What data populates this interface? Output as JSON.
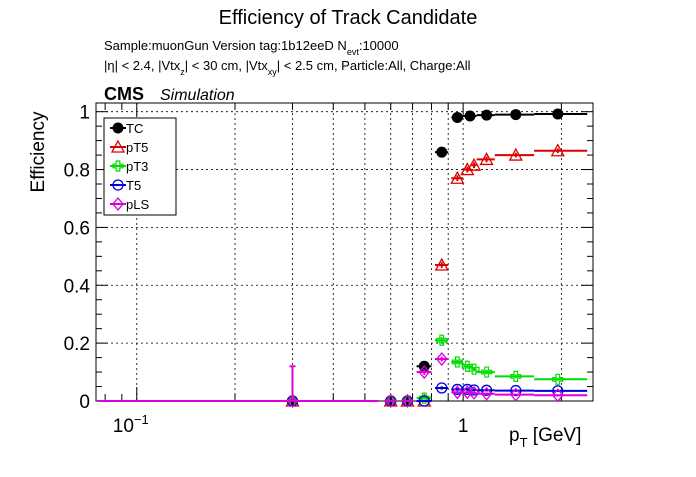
{
  "title": "Efficiency of Track Candidate",
  "info": {
    "sample": "Sample:muonGun   Version tag:1b12eeD  N",
    "sample_sub": "evt",
    "sample_tail": ":10000",
    "cuts_a": "|η| < 2.4, |Vtx",
    "cuts_a_sub": "z",
    "cuts_b": "| < 30 cm, |Vtx",
    "cuts_b_sub": "xy",
    "cuts_c": "| < 2.5 cm, Particle:All, Charge:All"
  },
  "cms_label": "CMS",
  "sim_label": "Simulation",
  "colors": {
    "TC": "#000000",
    "pT5": "#dd0000",
    "pT3": "#00dd00",
    "T5": "#0000dd",
    "pLS": "#dd00dd"
  },
  "chart_data": {
    "type": "scatter",
    "title": "Efficiency of Track Candidate",
    "xlabel": "p",
    "xlabel_sub": "T",
    "xlabel_unit": " [GeV]",
    "ylabel": "Efficiency",
    "xscale": "log",
    "xlim": [
      0.075,
      2.5
    ],
    "ylim": [
      0,
      1.03
    ],
    "grid": true,
    "legend_position": "top-left",
    "x_tick_labels": [
      {
        "value": 0.1,
        "base": "10",
        "exp": "−1"
      },
      {
        "value": 1,
        "base": "1",
        "exp": ""
      }
    ],
    "y_tick_labels": [
      "0",
      "0.2",
      "0.4",
      "0.6",
      "0.8",
      "1"
    ],
    "y_tick_values": [
      0,
      0.2,
      0.4,
      0.6,
      0.8,
      1.0
    ],
    "series": [
      {
        "name": "TC",
        "marker": "circle-filled",
        "points": [
          {
            "x": 0.3,
            "xlo": 0.295,
            "xhi": 0.305,
            "y": 0.0,
            "err": 0.0
          },
          {
            "x": 0.6,
            "xlo": 0.575,
            "xhi": 0.625,
            "y": 0.0,
            "err": 0.0
          },
          {
            "x": 0.675,
            "xlo": 0.65,
            "xhi": 0.7,
            "y": 0.0,
            "err": 0.0
          },
          {
            "x": 0.76,
            "xlo": 0.72,
            "xhi": 0.8,
            "y": 0.12,
            "err": 0.01
          },
          {
            "x": 0.86,
            "xlo": 0.82,
            "xhi": 0.9,
            "y": 0.86,
            "err": 0.01
          },
          {
            "x": 0.96,
            "xlo": 0.92,
            "xhi": 1.0,
            "y": 0.98,
            "err": 0.005
          },
          {
            "x": 1.05,
            "xlo": 1.0,
            "xhi": 1.1,
            "y": 0.985,
            "err": 0.005
          },
          {
            "x": 1.18,
            "xlo": 1.1,
            "xhi": 1.25,
            "y": 0.988,
            "err": 0.005
          },
          {
            "x": 1.45,
            "xlo": 1.25,
            "xhi": 1.65,
            "y": 0.99,
            "err": 0.005
          },
          {
            "x": 1.95,
            "xlo": 1.65,
            "xhi": 2.4,
            "y": 0.992,
            "err": 0.005
          }
        ]
      },
      {
        "name": "pT5",
        "marker": "triangle-open",
        "points": [
          {
            "x": 0.3,
            "xlo": 0.295,
            "xhi": 0.305,
            "y": 0.0,
            "err": 0.0
          },
          {
            "x": 0.6,
            "xlo": 0.575,
            "xhi": 0.625,
            "y": 0.0,
            "err": 0.0
          },
          {
            "x": 0.675,
            "xlo": 0.65,
            "xhi": 0.7,
            "y": 0.0,
            "err": 0.0
          },
          {
            "x": 0.76,
            "xlo": 0.72,
            "xhi": 0.8,
            "y": 0.0,
            "err": 0.0
          },
          {
            "x": 0.86,
            "xlo": 0.82,
            "xhi": 0.9,
            "y": 0.47,
            "err": 0.01
          },
          {
            "x": 0.96,
            "xlo": 0.92,
            "xhi": 1.0,
            "y": 0.77,
            "err": 0.01
          },
          {
            "x": 1.03,
            "xlo": 1.0,
            "xhi": 1.06,
            "y": 0.8,
            "err": 0.01
          },
          {
            "x": 1.08,
            "xlo": 1.06,
            "xhi": 1.1,
            "y": 0.815,
            "err": 0.01
          },
          {
            "x": 1.18,
            "xlo": 1.1,
            "xhi": 1.25,
            "y": 0.835,
            "err": 0.01
          },
          {
            "x": 1.45,
            "xlo": 1.25,
            "xhi": 1.65,
            "y": 0.85,
            "err": 0.008
          },
          {
            "x": 1.95,
            "xlo": 1.65,
            "xhi": 2.4,
            "y": 0.865,
            "err": 0.008
          }
        ]
      },
      {
        "name": "pT3",
        "marker": "cross-open",
        "points": [
          {
            "x": 0.3,
            "xlo": 0.295,
            "xhi": 0.305,
            "y": 0.0,
            "err": 0.0
          },
          {
            "x": 0.6,
            "xlo": 0.575,
            "xhi": 0.625,
            "y": 0.0,
            "err": 0.0
          },
          {
            "x": 0.675,
            "xlo": 0.65,
            "xhi": 0.7,
            "y": 0.0,
            "err": 0.0
          },
          {
            "x": 0.76,
            "xlo": 0.72,
            "xhi": 0.8,
            "y": 0.01,
            "err": 0.005
          },
          {
            "x": 0.86,
            "xlo": 0.82,
            "xhi": 0.9,
            "y": 0.21,
            "err": 0.01
          },
          {
            "x": 0.96,
            "xlo": 0.92,
            "xhi": 1.0,
            "y": 0.135,
            "err": 0.008
          },
          {
            "x": 1.03,
            "xlo": 1.0,
            "xhi": 1.06,
            "y": 0.12,
            "err": 0.008
          },
          {
            "x": 1.08,
            "xlo": 1.06,
            "xhi": 1.1,
            "y": 0.11,
            "err": 0.008
          },
          {
            "x": 1.18,
            "xlo": 1.1,
            "xhi": 1.25,
            "y": 0.1,
            "err": 0.007
          },
          {
            "x": 1.45,
            "xlo": 1.25,
            "xhi": 1.65,
            "y": 0.085,
            "err": 0.006
          },
          {
            "x": 1.95,
            "xlo": 1.65,
            "xhi": 2.4,
            "y": 0.075,
            "err": 0.005
          }
        ]
      },
      {
        "name": "T5",
        "marker": "circle-open",
        "points": [
          {
            "x": 0.3,
            "xlo": 0.295,
            "xhi": 0.305,
            "y": 0.0,
            "err": 0.0
          },
          {
            "x": 0.6,
            "xlo": 0.575,
            "xhi": 0.625,
            "y": 0.0,
            "err": 0.0
          },
          {
            "x": 0.675,
            "xlo": 0.65,
            "xhi": 0.7,
            "y": 0.0,
            "err": 0.0
          },
          {
            "x": 0.76,
            "xlo": 0.72,
            "xhi": 0.8,
            "y": 0.0,
            "err": 0.0
          },
          {
            "x": 0.86,
            "xlo": 0.82,
            "xhi": 0.9,
            "y": 0.045,
            "err": 0.006
          },
          {
            "x": 0.96,
            "xlo": 0.92,
            "xhi": 1.0,
            "y": 0.04,
            "err": 0.005
          },
          {
            "x": 1.03,
            "xlo": 1.0,
            "xhi": 1.06,
            "y": 0.04,
            "err": 0.005
          },
          {
            "x": 1.08,
            "xlo": 1.06,
            "xhi": 1.1,
            "y": 0.038,
            "err": 0.005
          },
          {
            "x": 1.18,
            "xlo": 1.1,
            "xhi": 1.25,
            "y": 0.037,
            "err": 0.004
          },
          {
            "x": 1.45,
            "xlo": 1.25,
            "xhi": 1.65,
            "y": 0.036,
            "err": 0.004
          },
          {
            "x": 1.95,
            "xlo": 1.65,
            "xhi": 2.4,
            "y": 0.035,
            "err": 0.004
          }
        ]
      },
      {
        "name": "pLS",
        "marker": "diamond-open",
        "points": [
          {
            "x": 0.3,
            "xlo": 0.076,
            "xhi": 0.55,
            "y": 0.0,
            "err": 0.12
          },
          {
            "x": 0.6,
            "xlo": 0.575,
            "xhi": 0.625,
            "y": 0.0,
            "err": 0.0
          },
          {
            "x": 0.675,
            "xlo": 0.65,
            "xhi": 0.7,
            "y": 0.0,
            "err": 0.0
          },
          {
            "x": 0.76,
            "xlo": 0.72,
            "xhi": 0.8,
            "y": 0.1,
            "err": 0.01
          },
          {
            "x": 0.86,
            "xlo": 0.82,
            "xhi": 0.9,
            "y": 0.145,
            "err": 0.008
          },
          {
            "x": 0.96,
            "xlo": 0.92,
            "xhi": 1.0,
            "y": 0.03,
            "err": 0.004
          },
          {
            "x": 1.03,
            "xlo": 1.0,
            "xhi": 1.06,
            "y": 0.03,
            "err": 0.004
          },
          {
            "x": 1.08,
            "xlo": 1.06,
            "xhi": 1.1,
            "y": 0.028,
            "err": 0.004
          },
          {
            "x": 1.18,
            "xlo": 1.1,
            "xhi": 1.25,
            "y": 0.025,
            "err": 0.004
          },
          {
            "x": 1.45,
            "xlo": 1.25,
            "xhi": 1.65,
            "y": 0.022,
            "err": 0.003
          },
          {
            "x": 1.95,
            "xlo": 1.65,
            "xhi": 2.4,
            "y": 0.02,
            "err": 0.003
          }
        ]
      }
    ]
  }
}
